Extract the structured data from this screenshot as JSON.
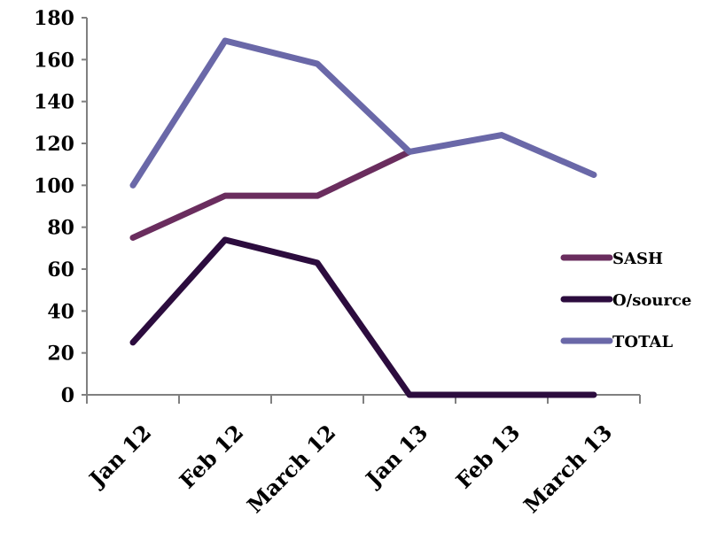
{
  "chart_data": {
    "type": "line",
    "title": "",
    "xlabel": "",
    "ylabel": "",
    "categories": [
      "Jan 12",
      "Feb 12",
      "March 12",
      "Jan 13",
      "Feb 13",
      "March 13"
    ],
    "ylim": [
      0,
      180
    ],
    "yticks": [
      0,
      20,
      40,
      60,
      80,
      100,
      120,
      140,
      160,
      180
    ],
    "grid": false,
    "legend_position": "right",
    "series": [
      {
        "name": "SASH",
        "color": "#6a2d5e",
        "values": [
          75,
          95,
          95,
          116,
          null,
          null
        ]
      },
      {
        "name": "O/source",
        "color": "#2c0c3e",
        "values": [
          25,
          74,
          63,
          0,
          0,
          0
        ]
      },
      {
        "name": "TOTAL",
        "color": "#6a68a8",
        "values": [
          100,
          169,
          158,
          116,
          124,
          105
        ]
      }
    ]
  }
}
